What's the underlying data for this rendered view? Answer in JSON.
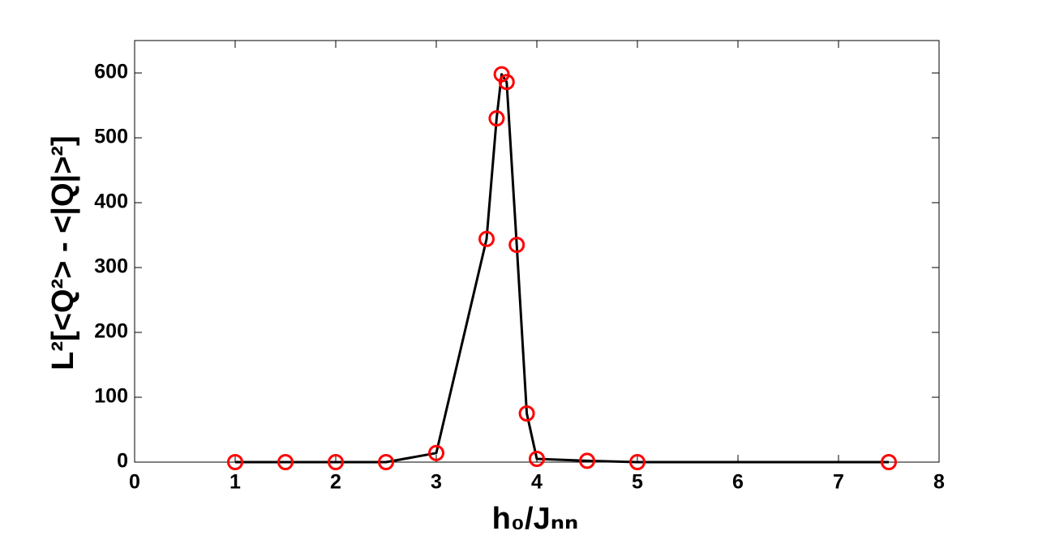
{
  "chart_data": {
    "type": "line",
    "x_label": "h₀/Jₙₙ",
    "y_label": "L²[<Q²> - <|Q|>²]",
    "x": [
      1,
      1.5,
      2,
      2.5,
      3,
      3.5,
      3.6,
      3.65,
      3.7,
      3.8,
      3.9,
      4,
      4.5,
      5,
      7.5
    ],
    "series": [
      {
        "line_color": "#000000",
        "marker_color": "#ff0000",
        "values": [
          0,
          0,
          0,
          0,
          14,
          344,
          530,
          598,
          586,
          335,
          75,
          5,
          2,
          0,
          0
        ]
      }
    ],
    "xlim": [
      0,
      8
    ],
    "xticks": [
      0,
      1,
      2,
      3,
      4,
      5,
      6,
      7,
      8
    ],
    "ylim": [
      0,
      650
    ],
    "yticks": [
      0,
      100,
      200,
      300,
      400,
      500,
      600
    ],
    "grid": false
  }
}
